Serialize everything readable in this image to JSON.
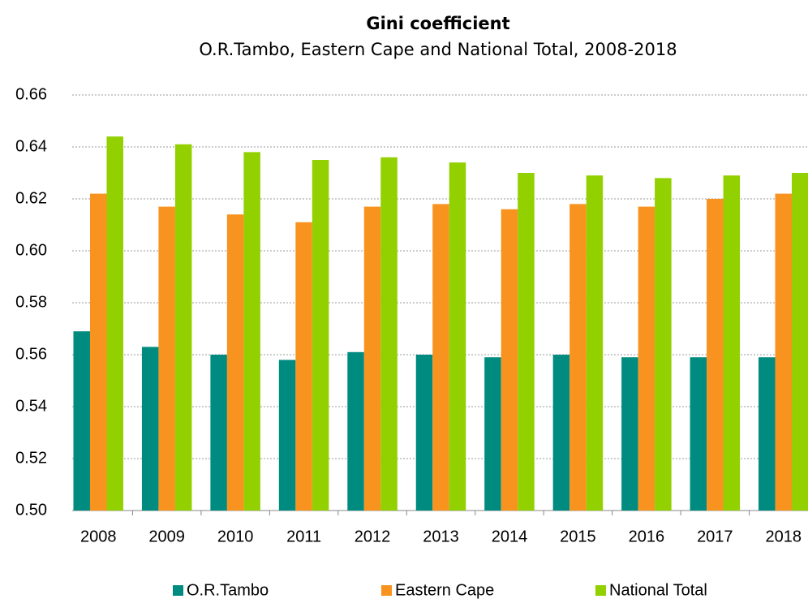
{
  "chart_data": {
    "type": "bar",
    "title": "Gini coefficient",
    "subtitle": "O.R.Tambo, Eastern Cape and National Total, 2008-2018",
    "categories": [
      "2008",
      "2009",
      "2010",
      "2011",
      "2012",
      "2013",
      "2014",
      "2015",
      "2016",
      "2017",
      "2018"
    ],
    "series": [
      {
        "name": "O.R.Tambo",
        "color": "#008b80",
        "values": [
          0.569,
          0.563,
          0.56,
          0.558,
          0.561,
          0.56,
          0.559,
          0.56,
          0.559,
          0.559,
          0.559
        ]
      },
      {
        "name": "Eastern Cape",
        "color": "#f7931e",
        "values": [
          0.622,
          0.617,
          0.614,
          0.611,
          0.617,
          0.618,
          0.616,
          0.618,
          0.617,
          0.62,
          0.622
        ]
      },
      {
        "name": "National Total",
        "color": "#92d000",
        "values": [
          0.644,
          0.641,
          0.638,
          0.635,
          0.636,
          0.634,
          0.63,
          0.629,
          0.628,
          0.629,
          0.63
        ]
      }
    ],
    "ylim": [
      0.5,
      0.66
    ],
    "yticks": [
      {
        "value": 0.5,
        "label": "0.50"
      },
      0.52,
      0.54,
      0.56,
      0.58,
      {
        "value": 0.6,
        "label": "0.60"
      },
      0.62,
      0.64,
      0.66
    ],
    "grid": true,
    "legend": "bottom"
  }
}
